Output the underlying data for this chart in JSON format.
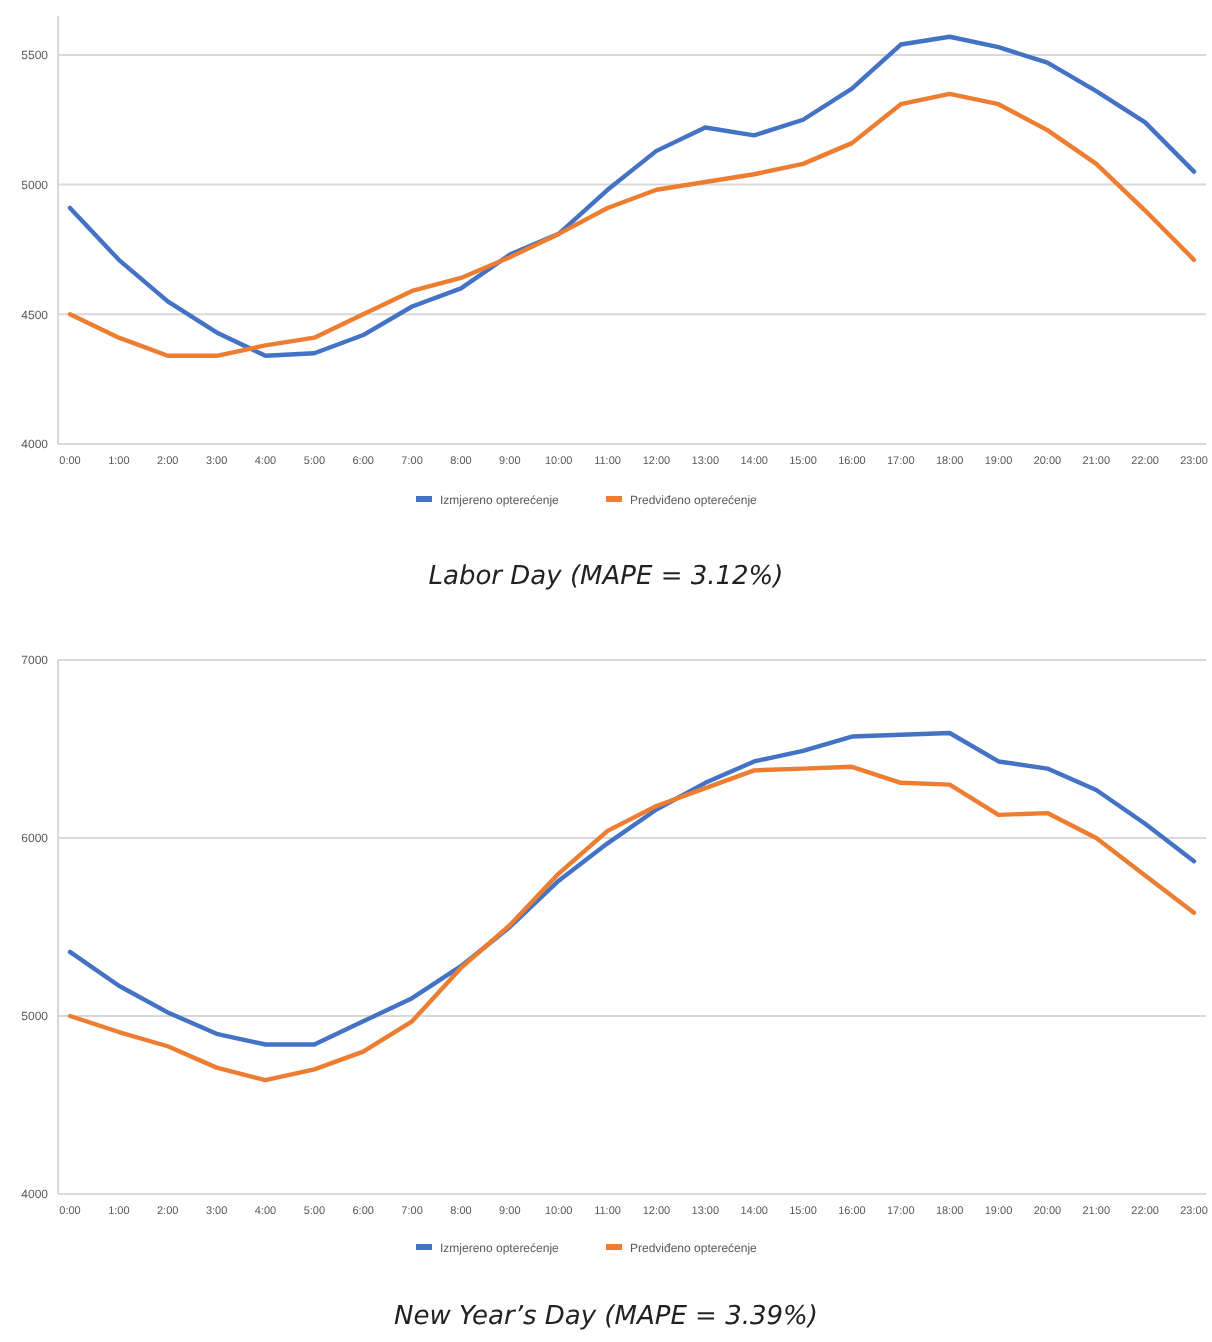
{
  "chart_data": [
    {
      "type": "line",
      "title": "Labor Day (MAPE = 3.12%)",
      "categories": [
        "0:00",
        "1:00",
        "2:00",
        "3:00",
        "4:00",
        "5:00",
        "6:00",
        "7:00",
        "8:00",
        "9:00",
        "10:00",
        "11:00",
        "12:00",
        "13:00",
        "14:00",
        "15:00",
        "16:00",
        "17:00",
        "18:00",
        "19:00",
        "20:00",
        "21:00",
        "22:00",
        "23:00"
      ],
      "series": [
        {
          "name": "Izmjereno opterećenje",
          "color": "#4472c4",
          "values": [
            4910,
            4710,
            4550,
            4430,
            4340,
            4350,
            4420,
            4530,
            4600,
            4730,
            4810,
            4980,
            5130,
            5220,
            5190,
            5250,
            5370,
            5540,
            5570,
            5530,
            5470,
            5360,
            5240,
            5050
          ]
        },
        {
          "name": "Predviđeno opterećenje",
          "color": "#ed7d31",
          "values": [
            4500,
            4410,
            4340,
            4340,
            4380,
            4410,
            4500,
            4590,
            4640,
            4720,
            4810,
            4910,
            4980,
            5010,
            5040,
            5080,
            5160,
            5310,
            5350,
            5310,
            5210,
            5080,
            4900,
            4710
          ]
        }
      ],
      "ylim": [
        4000,
        5650
      ],
      "yticks": [
        4000,
        4500,
        5000,
        5500
      ],
      "grid": "y",
      "legend": "bottom",
      "marker": "none",
      "line_style": "solid"
    },
    {
      "type": "line",
      "title": "New Year’s Day (MAPE = 3.39%)",
      "categories": [
        "0:00",
        "1:00",
        "2:00",
        "3:00",
        "4:00",
        "5:00",
        "6:00",
        "7:00",
        "8:00",
        "9:00",
        "10:00",
        "11:00",
        "12:00",
        "13:00",
        "14:00",
        "15:00",
        "16:00",
        "17:00",
        "18:00",
        "19:00",
        "20:00",
        "21:00",
        "22:00",
        "23:00"
      ],
      "series": [
        {
          "name": "Izmjereno opterećenje",
          "color": "#4472c4",
          "values": [
            5360,
            5170,
            5020,
            4900,
            4840,
            4840,
            4970,
            5100,
            5280,
            5500,
            5760,
            5970,
            6160,
            6310,
            6430,
            6490,
            6570,
            6580,
            6590,
            6430,
            6390,
            6270,
            6080,
            5870
          ]
        },
        {
          "name": "Predviđeno opterećenje",
          "color": "#ed7d31",
          "values": [
            5000,
            4910,
            4830,
            4710,
            4640,
            4700,
            4800,
            4970,
            5270,
            5510,
            5800,
            6040,
            6180,
            6280,
            6380,
            6390,
            6400,
            6310,
            6300,
            6130,
            6140,
            6000,
            5790,
            5580
          ]
        }
      ],
      "ylim": [
        4000,
        7000
      ],
      "yticks": [
        4000,
        5000,
        6000,
        7000
      ],
      "grid": "y",
      "legend": "bottom",
      "marker": "none",
      "line_style": "solid"
    }
  ]
}
